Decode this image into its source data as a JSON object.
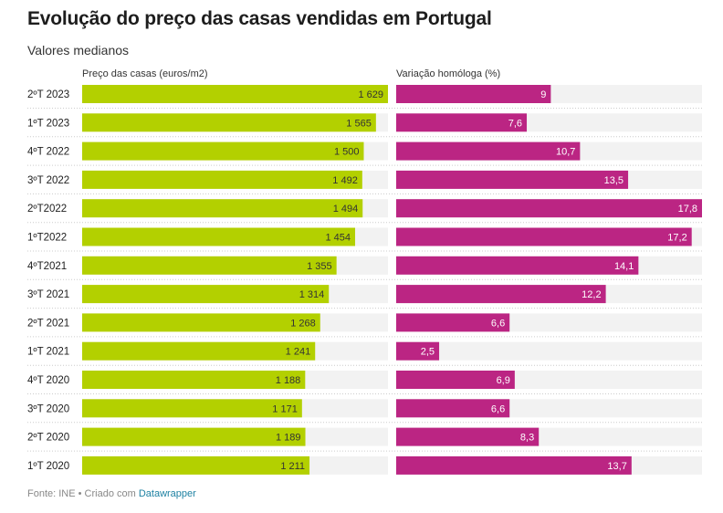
{
  "header": {
    "title": "Evolução do preço das casas vendidas em Portugal",
    "subtitle": "Valores medianos"
  },
  "footer": {
    "source": "Fonte: INE • Criado com ",
    "link": "Datawrapper"
  },
  "colors": {
    "price_bar": "#b3d000",
    "variation_bar": "#bb2583",
    "track": "#f2f2f2",
    "separator": "#cccccc"
  },
  "chart_data": {
    "type": "bar",
    "orientation": "horizontal",
    "categories": [
      "2ºT 2023",
      "1ºT 2023",
      "4ºT 2022",
      "3ºT 2022",
      "2ºT2022",
      "1ºT2022",
      "4ºT2021",
      "3ºT 2021",
      "2ºT 2021",
      "1ºT 2021",
      "4ºT 2020",
      "3ºT 2020",
      "2ºT 2020",
      "1ºT 2020"
    ],
    "series": [
      {
        "name": "Preço das casas (euros/m2)",
        "values": [
          1629,
          1565,
          1500,
          1492,
          1494,
          1454,
          1355,
          1314,
          1268,
          1241,
          1188,
          1171,
          1189,
          1211
        ],
        "labels": [
          "1 629",
          "1 565",
          "1 500",
          "1 492",
          "1 494",
          "1 454",
          "1 355",
          "1 314",
          "1 268",
          "1 241",
          "1 188",
          "1 171",
          "1 189",
          "1 211"
        ],
        "xlim": [
          0,
          1629
        ]
      },
      {
        "name": "Variação homóloga (%)",
        "values": [
          9,
          7.6,
          10.7,
          13.5,
          17.8,
          17.2,
          14.1,
          12.2,
          6.6,
          2.5,
          6.9,
          6.6,
          8.3,
          13.7
        ],
        "labels": [
          "9",
          "7,6",
          "10,7",
          "13,5",
          "17,8",
          "17,2",
          "14,1",
          "12,2",
          "6,6",
          "2,5",
          "6,9",
          "6,6",
          "8,3",
          "13,7"
        ],
        "xlim": [
          0,
          17.8
        ]
      }
    ]
  }
}
